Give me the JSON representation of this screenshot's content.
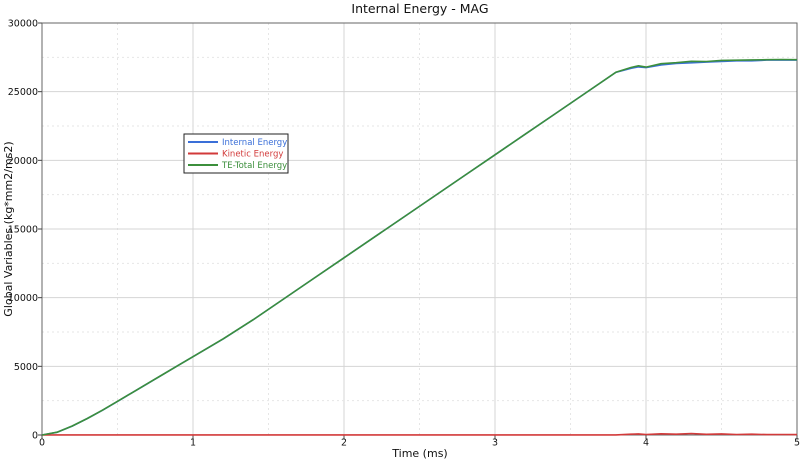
{
  "chart_data": {
    "type": "line",
    "title": "Internal Energy - MAG",
    "xlabel": "Time (ms)",
    "ylabel": "Global Variables (kg*mm2/ms2)",
    "xlim": [
      0,
      5
    ],
    "ylim": [
      0,
      30000
    ],
    "x_ticks": [
      "0",
      "1",
      "2",
      "3",
      "4",
      "5"
    ],
    "y_ticks": [
      "0",
      "5000",
      "10000",
      "15000",
      "20000",
      "25000",
      "30000"
    ],
    "grid": true,
    "legend_position": "upper-left",
    "x": [
      0,
      0.1,
      0.2,
      0.3,
      0.4,
      0.5,
      0.6,
      0.7,
      0.8,
      0.9,
      1.0,
      1.2,
      1.4,
      1.6,
      1.8,
      2.0,
      2.2,
      2.4,
      2.6,
      2.8,
      3.0,
      3.2,
      3.4,
      3.6,
      3.8,
      3.9,
      3.95,
      4.0,
      4.1,
      4.2,
      4.3,
      4.4,
      4.5,
      4.6,
      4.7,
      4.8,
      4.9,
      5.0
    ],
    "series": [
      {
        "name": "Internal Energy",
        "color": "#3a6fd8",
        "values": [
          0,
          200,
          650,
          1200,
          1800,
          2450,
          3100,
          3750,
          4400,
          5050,
          5700,
          7000,
          8400,
          9900,
          11400,
          12900,
          14400,
          15900,
          17400,
          18900,
          20400,
          21900,
          23400,
          24900,
          26400,
          26700,
          26800,
          26750,
          26950,
          27050,
          27100,
          27150,
          27200,
          27250,
          27250,
          27300,
          27300,
          27300
        ]
      },
      {
        "name": "Kinetic Energy",
        "color": "#d23a3a",
        "values": [
          0,
          5,
          5,
          5,
          5,
          5,
          5,
          5,
          5,
          5,
          5,
          5,
          5,
          5,
          5,
          5,
          5,
          5,
          5,
          5,
          5,
          5,
          5,
          5,
          10,
          60,
          80,
          40,
          90,
          60,
          110,
          50,
          80,
          40,
          60,
          30,
          40,
          30
        ]
      },
      {
        "name": "TE-Total Energy",
        "color": "#3c8f3c",
        "values": [
          0,
          205,
          655,
          1205,
          1805,
          2455,
          3105,
          3755,
          4405,
          5055,
          5705,
          7005,
          8405,
          9905,
          11405,
          12905,
          14405,
          15905,
          17405,
          18905,
          20405,
          21905,
          23405,
          24905,
          26410,
          26760,
          26880,
          26790,
          27040,
          27110,
          27210,
          27200,
          27280,
          27290,
          27310,
          27330,
          27340,
          27330
        ]
      }
    ]
  }
}
